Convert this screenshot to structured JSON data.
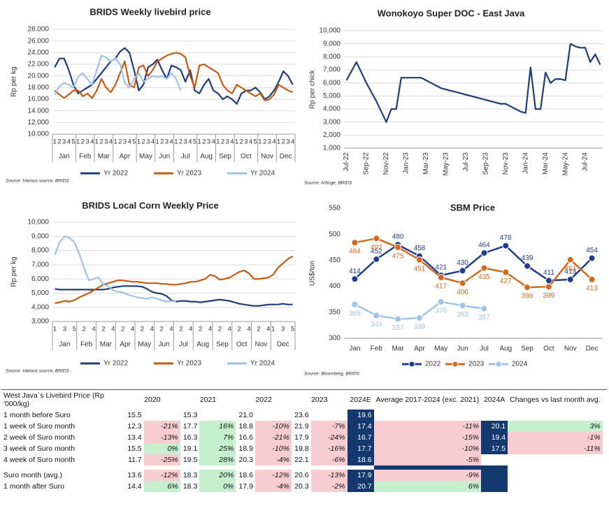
{
  "chart_data": [
    {
      "type": "line",
      "title": "BRIDS Weekly livebird price",
      "y_label": "Rp per kg",
      "source": "Source: Various source, BRIDS",
      "grid": true,
      "groups": [
        {
          "name": "Jan",
          "weeks": [
            1,
            2,
            3,
            4,
            5
          ]
        },
        {
          "name": "Feb",
          "weeks": [
            1,
            2,
            3,
            4
          ]
        },
        {
          "name": "Mar",
          "weeks": [
            1,
            2,
            3,
            4
          ]
        },
        {
          "name": "Apr",
          "weeks": [
            1,
            2,
            3,
            4,
            5
          ]
        },
        {
          "name": "May",
          "weeks": [
            1,
            2,
            3,
            4
          ]
        },
        {
          "name": "Jun",
          "weeks": [
            1,
            2,
            3,
            4
          ]
        },
        {
          "name": "Jul",
          "weeks": [
            1,
            2,
            3,
            4,
            5
          ]
        },
        {
          "name": "Aug",
          "weeks": [
            1,
            2,
            3,
            4
          ]
        },
        {
          "name": "Sep",
          "weeks": [
            1,
            2,
            3,
            4
          ]
        },
        {
          "name": "Oct",
          "weeks": [
            1,
            2,
            3,
            4,
            5
          ]
        },
        {
          "name": "Nov",
          "weeks": [
            1,
            2,
            3,
            4
          ]
        },
        {
          "name": "Dec",
          "weeks": [
            1,
            2,
            3,
            4
          ]
        }
      ],
      "ylim": [
        10000,
        28000
      ],
      "yticks": [
        {
          "value": 10000,
          "label": "10.000"
        },
        {
          "value": 12000,
          "label": "12.000"
        },
        {
          "value": 14000,
          "label": "14.000"
        },
        {
          "value": 16000,
          "label": "16.000"
        },
        {
          "value": 18000,
          "label": "18.000"
        },
        {
          "value": 20000,
          "label": "20.000"
        },
        {
          "value": 22000,
          "label": "22.000"
        },
        {
          "value": 24000,
          "label": "24.000"
        },
        {
          "value": 26000,
          "label": "26.000"
        },
        {
          "value": 28000,
          "label": "28.000"
        }
      ],
      "series": [
        {
          "name": "Yr 2022",
          "color": "#1f3d78",
          "values": [
            21500,
            23000,
            23000,
            21000,
            18500,
            17000,
            17500,
            18000,
            18500,
            19500,
            20500,
            21500,
            22500,
            23000,
            24200,
            24800,
            24000,
            21000,
            17500,
            18500,
            21500,
            22000,
            22800,
            21000,
            19500,
            21800,
            21500,
            21000,
            19000,
            21000,
            17500,
            17000,
            18500,
            19500,
            17500,
            17000,
            16000,
            16500,
            16000,
            15200,
            17000,
            17500,
            17500,
            18000,
            17200,
            16000,
            16500,
            17500,
            19000,
            20800,
            20000,
            18500
          ]
        },
        {
          "name": "Yr 2023",
          "color": "#c55a11",
          "values": [
            17500,
            16800,
            16200,
            16800,
            17500,
            17500,
            16500,
            17000,
            16200,
            17500,
            19500,
            18000,
            17200,
            18500,
            20500,
            22500,
            18500,
            18000,
            21500,
            21800,
            20000,
            21000,
            22500,
            23000,
            23500,
            23800,
            24000,
            23800,
            23200,
            20000,
            18000,
            21800,
            22000,
            21500,
            21000,
            20500,
            18500,
            17500,
            17000,
            18500,
            18000,
            17500,
            17000,
            16500,
            17000,
            15800,
            16000,
            16800,
            18500,
            18000,
            17500,
            17200
          ]
        },
        {
          "name": "Yr 2024",
          "color": "#9dc3e6",
          "values": [
            16800,
            18200,
            18800,
            18500,
            18000,
            19800,
            20500,
            19500,
            18500,
            21000,
            23500,
            23200,
            22500,
            23000,
            22000,
            18800,
            18000,
            19500,
            20500,
            19000,
            19500,
            20000,
            19800,
            20000,
            19500,
            20500,
            19500,
            17500,
            null,
            null,
            null,
            null,
            null,
            null,
            null,
            null,
            null,
            null,
            null,
            null,
            null,
            null,
            null,
            null,
            null,
            null,
            null,
            null,
            null,
            null,
            null,
            null
          ]
        }
      ]
    },
    {
      "type": "line",
      "title": "Wonokoyo Super DOC - East Java",
      "y_label": "Rp per chick",
      "source": "Source: Arboge, BRIDS",
      "grid": true,
      "categories": [
        "Jul-22",
        null,
        null,
        null,
        "Sep-22",
        null,
        null,
        null,
        "Nov-22",
        null,
        null,
        null,
        "Jan-23",
        null,
        null,
        null,
        "Mar-23",
        null,
        null,
        null,
        "May-23",
        null,
        null,
        null,
        "Jul-23",
        null,
        null,
        null,
        "Sep-23",
        null,
        null,
        null,
        "Nov-23",
        null,
        null,
        null,
        "Jan-24",
        null,
        null,
        null,
        "Mar-24",
        null,
        null,
        null,
        "May-24",
        null,
        null,
        null,
        "Jul-24",
        null,
        null,
        null
      ],
      "ylim": [
        1000,
        10000
      ],
      "yticks": [
        {
          "value": 1000,
          "label": "1,000"
        },
        {
          "value": 2000,
          "label": "2,000"
        },
        {
          "value": 3000,
          "label": "3,000"
        },
        {
          "value": 4000,
          "label": "4,000"
        },
        {
          "value": 5000,
          "label": "5,000"
        },
        {
          "value": 6000,
          "label": "6,000"
        },
        {
          "value": 7000,
          "label": "7,000"
        },
        {
          "value": 8000,
          "label": "8,000"
        },
        {
          "value": 9000,
          "label": "9,000"
        },
        {
          "value": 10000,
          "label": "10,000"
        }
      ],
      "series": [
        {
          "color": "#1f3d78",
          "values": [
            6200,
            6900,
            7600,
            6800,
            6000,
            5300,
            4600,
            3800,
            3000,
            4000,
            4000,
            6400,
            6400,
            6400,
            6400,
            6400,
            6200,
            6000,
            5800,
            5600,
            5500,
            5400,
            5300,
            5200,
            5100,
            5000,
            4900,
            4800,
            4700,
            4600,
            4500,
            4400,
            4400,
            4200,
            4000,
            3800,
            3700,
            7200,
            4000,
            4000,
            6800,
            6000,
            6300,
            6300,
            6200,
            9000,
            8800,
            8700,
            8700,
            7600,
            8200,
            7400
          ]
        }
      ]
    },
    {
      "type": "line",
      "title": "BRIDS Local Corn Weekly Price",
      "y_label": "Rp per kg",
      "source": "Source: Various source, BRIDS",
      "grid": true,
      "groups": [
        {
          "name": "Jan",
          "weeks": [
            1,
            null,
            3,
            null,
            5
          ]
        },
        {
          "name": "Feb",
          "weeks": [
            null,
            2,
            null,
            4
          ]
        },
        {
          "name": "Mar",
          "weeks": [
            null,
            2,
            null,
            4
          ]
        },
        {
          "name": "Apr",
          "weeks": [
            null,
            2,
            null,
            4
          ]
        },
        {
          "name": "May",
          "weeks": [
            null,
            2,
            null,
            4
          ]
        },
        {
          "name": "Jun",
          "weeks": [
            null,
            2,
            null,
            4
          ]
        },
        {
          "name": "Jul",
          "weeks": [
            null,
            2,
            null,
            4
          ]
        },
        {
          "name": "Aug",
          "weeks": [
            null,
            2,
            null,
            4
          ]
        },
        {
          "name": "Sep",
          "weeks": [
            null,
            2,
            null,
            4
          ]
        },
        {
          "name": "Oct",
          "weeks": [
            null,
            2,
            null,
            4
          ]
        },
        {
          "name": "Nov",
          "weeks": [
            null,
            2,
            null,
            4
          ]
        },
        {
          "name": "Dec",
          "weeks": [
            1,
            null,
            3,
            null,
            5
          ]
        }
      ],
      "ylim": [
        3000,
        10000
      ],
      "yticks": [
        {
          "value": 3000,
          "label": "3,000"
        },
        {
          "value": 4000,
          "label": "4,000"
        },
        {
          "value": 5000,
          "label": "5,000"
        },
        {
          "value": 6000,
          "label": "6,000"
        },
        {
          "value": 7000,
          "label": "7,000"
        },
        {
          "value": 8000,
          "label": "8,000"
        },
        {
          "value": 9000,
          "label": "9,000"
        },
        {
          "value": 10000,
          "label": "10,000"
        }
      ],
      "series": [
        {
          "name": "Yr 2022",
          "color": "#1f3d78",
          "values": [
            5300,
            5250,
            5250,
            5250,
            5250,
            5250,
            5250,
            5250,
            5250,
            5250,
            5250,
            5300,
            5400,
            5450,
            5500,
            5500,
            5500,
            5500,
            5450,
            5300,
            5100,
            5000,
            4950,
            4800,
            4500,
            4400,
            4450,
            4450,
            4400,
            4400,
            4350,
            4400,
            4450,
            4500,
            4550,
            4500,
            4450,
            4350,
            4250,
            4200,
            4150,
            4100,
            4100,
            4150,
            4200,
            4200,
            4200,
            4250,
            4200,
            4200
          ]
        },
        {
          "name": "Yr 2023",
          "color": "#c55a11",
          "values": [
            4300,
            4350,
            4450,
            4400,
            4500,
            4700,
            4850,
            5000,
            5200,
            5400,
            5600,
            5700,
            5800,
            5900,
            5900,
            5850,
            5800,
            5800,
            5750,
            5700,
            5700,
            5700,
            5650,
            5650,
            5600,
            5600,
            5650,
            5700,
            5800,
            5800,
            5900,
            6000,
            6300,
            6200,
            5950,
            6000,
            6100,
            6300,
            6500,
            6600,
            6400,
            6000,
            6000,
            6050,
            6100,
            6300,
            6800,
            7100,
            7400,
            7600
          ]
        },
        {
          "name": "Yr 2024",
          "color": "#9dc3e6",
          "values": [
            7700,
            8600,
            9000,
            8900,
            8600,
            7800,
            6800,
            5900,
            6000,
            6100,
            5600,
            5500,
            5200,
            5100,
            5050,
            4900,
            4800,
            4700,
            4650,
            4600,
            4700,
            4600,
            4500,
            4400,
            4450,
            4400,
            null,
            null,
            null,
            null,
            null,
            null,
            null,
            null,
            null,
            null,
            null,
            null,
            null,
            null,
            null,
            null,
            null,
            null,
            null,
            null,
            null,
            null,
            null,
            null
          ]
        }
      ]
    },
    {
      "type": "line",
      "title": "SBM Price",
      "y_label": "US$/ton",
      "source": "Source: Bloomberg, BRIDS",
      "grid": false,
      "markers": true,
      "data_labels": true,
      "categories": [
        "Jan",
        "Feb",
        "Mar",
        "Apr",
        "May",
        "Jun",
        "Jul",
        "Aug",
        "Sep",
        "Oct",
        "Nov",
        "Dec"
      ],
      "ylim": [
        300,
        550
      ],
      "yticks": [
        300,
        350,
        400,
        450,
        500,
        550
      ],
      "series": [
        {
          "name": "2022",
          "color": "#1f3d8c",
          "values": [
            414,
            452,
            480,
            458,
            421,
            430,
            464,
            478,
            439,
            411,
            413,
            454
          ]
        },
        {
          "name": "2023",
          "color": "#d2691e",
          "values": [
            484,
            492,
            475,
            451,
            417,
            406,
            435,
            427,
            398,
            399,
            451,
            413
          ]
        },
        {
          "name": "2024",
          "color": "#9dc3e6",
          "values": [
            365,
            344,
            337,
            339,
            370,
            363,
            357,
            null,
            null,
            null,
            null,
            null
          ]
        }
      ]
    }
  ],
  "table": {
    "header": {
      "label": "West Java`s Livebird Price (Rp '000/kg)",
      "years": [
        "2020",
        "2021",
        "2022",
        "2023"
      ],
      "e2024": "2024E",
      "avg": "Average 2017-2024 (exc. 2021)",
      "a2024": "2024A",
      "change": "Changes vs last month avg."
    },
    "rows": [
      {
        "label": "1 month before Suro",
        "years": [
          [
            "15.5"
          ],
          [
            "15.3"
          ],
          [
            "21.0"
          ],
          [
            "23.6"
          ]
        ],
        "e2024": "19.6"
      },
      {
        "label": "1 week of Suro month",
        "years": [
          [
            "12.3",
            "-21%"
          ],
          [
            "17.7",
            "16%"
          ],
          [
            "18.8",
            "-10%"
          ],
          [
            "21.9",
            "-7%"
          ]
        ],
        "e2024": "17.4",
        "avg": "-11%",
        "a2024": "20.1",
        "change": "3%"
      },
      {
        "label": "2 week of Suro month",
        "years": [
          [
            "13.4",
            "-13%"
          ],
          [
            "16.3",
            "7%"
          ],
          [
            "16.6",
            "-21%"
          ],
          [
            "17.9",
            "-24%"
          ]
        ],
        "e2024": "16.7",
        "avg": "-15%",
        "a2024": "19.4",
        "change": "-1%"
      },
      {
        "label": "3 week of Suro month",
        "years": [
          [
            "15.5",
            "0%"
          ],
          [
            "19.1",
            "25%"
          ],
          [
            "18.9",
            "-10%"
          ],
          [
            "19.8",
            "-16%"
          ]
        ],
        "e2024": "17.7",
        "avg": "-10%",
        "a2024": "17.5",
        "change": "-11%"
      },
      {
        "label": "4 week of Suro month",
        "years": [
          [
            "11.7",
            "-25%"
          ],
          [
            "19.5",
            "28%"
          ],
          [
            "20.3",
            "-4%"
          ],
          [
            "22.1",
            "-6%"
          ]
        ],
        "e2024": "18.6",
        "avg": "-5%"
      },
      {
        "label": "Suro month (avg.)",
        "years": [
          [
            "13.6",
            "-12%"
          ],
          [
            "18.3",
            "20%"
          ],
          [
            "18.6",
            "-12%"
          ],
          [
            "20.6",
            "-13%"
          ]
        ],
        "e2024": "17.9",
        "avg": "-9%"
      },
      {
        "label": "1 month after Suro",
        "years": [
          [
            "14.4",
            "6%"
          ],
          [
            "18.3",
            "0%"
          ],
          [
            "17.9",
            "-4%"
          ],
          [
            "20.3",
            "-2%"
          ]
        ],
        "e2024": "20.7",
        "avg": "6%"
      }
    ]
  }
}
